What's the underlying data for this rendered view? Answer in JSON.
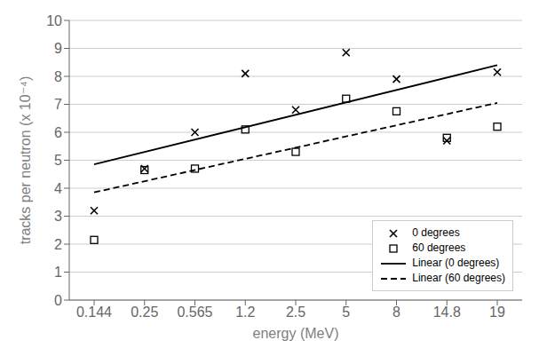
{
  "chart_data": {
    "type": "scatter",
    "xlabel": "energy (MeV)",
    "ylabel": "tracks per neutron (x 10⁻⁴)",
    "categories": [
      "0.144",
      "0.25",
      "0.565",
      "1.2",
      "2.5",
      "5",
      "8",
      "14.8",
      "19"
    ],
    "series": [
      {
        "name": "0 degrees",
        "type": "scatter",
        "marker": "x",
        "color": "#000000",
        "values": [
          3.2,
          4.7,
          6.0,
          8.1,
          6.8,
          8.85,
          7.9,
          5.7,
          8.15
        ]
      },
      {
        "name": "60 degrees",
        "type": "scatter",
        "marker": "square",
        "color": "#000000",
        "values": [
          2.15,
          4.65,
          4.7,
          6.1,
          5.3,
          7.2,
          6.75,
          5.8,
          6.2
        ]
      },
      {
        "name": "Linear (0 degrees)",
        "type": "line",
        "line_style": "solid",
        "color": "#000000",
        "values": [
          4.85,
          null,
          null,
          null,
          null,
          null,
          null,
          null,
          8.4
        ]
      },
      {
        "name": "Linear (60 degrees)",
        "type": "line",
        "line_style": "dashed",
        "color": "#000000",
        "values": [
          3.85,
          null,
          null,
          null,
          null,
          null,
          null,
          null,
          7.05
        ]
      }
    ],
    "ylim": [
      0,
      10
    ],
    "yticks": [
      0,
      1,
      2,
      3,
      4,
      5,
      6,
      7,
      8,
      9,
      10
    ],
    "grid": true,
    "legend": "lower right"
  }
}
